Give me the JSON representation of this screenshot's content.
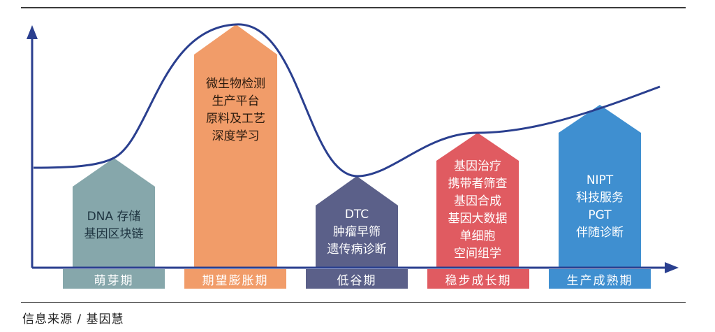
{
  "stages": [
    {
      "name": "萌芽期",
      "lines": [
        "DNA 存储",
        "基因区块链"
      ],
      "color": "#86a7ab",
      "text_color": "#1e3440"
    },
    {
      "name": "期望膨胀期",
      "lines": [
        "微生物检测",
        "生产平台",
        "原料及工艺",
        "深度学习"
      ],
      "color": "#f19c69",
      "text_color": "#2a1a0e"
    },
    {
      "name": "低谷期",
      "lines": [
        "DTC",
        "肿瘤早筛",
        "遗传病诊断"
      ],
      "color": "#5b6089",
      "text_color": "#ffffff"
    },
    {
      "name": "稳步成长期",
      "lines": [
        "基因治疗",
        "携带者筛查",
        "基因合成",
        "基因大数据",
        "单细胞",
        "空间组学"
      ],
      "color": "#e05b61",
      "text_color": "#ffffff"
    },
    {
      "name": "生产成熟期",
      "lines": [
        "NIPT",
        "科技服务",
        "PGT",
        "伴随诊断"
      ],
      "color": "#3f8fd0",
      "text_color": "#ffffff"
    }
  ],
  "colors": {
    "axis": "#2a3f8f",
    "curve": "#2a3f8f"
  },
  "source": "信息来源 / 基因慧"
}
